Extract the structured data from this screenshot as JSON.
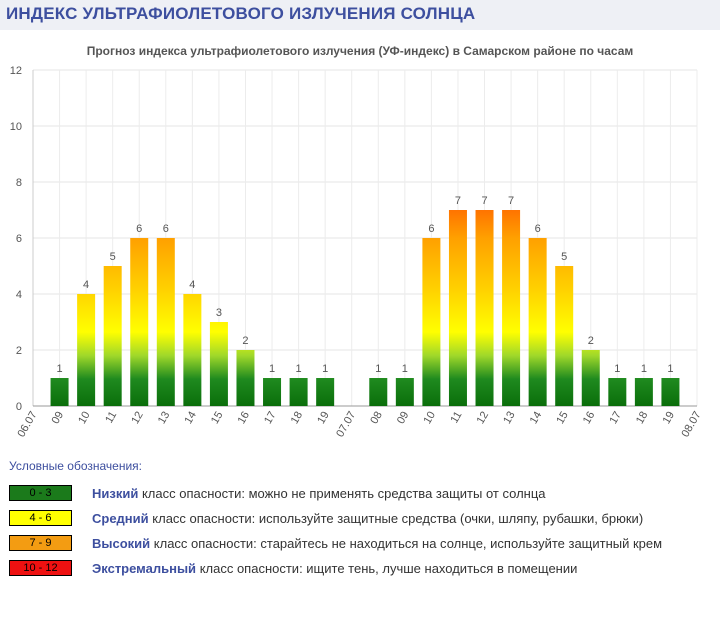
{
  "header": {
    "title": "ИНДЕКС УЛЬТРАФИОЛЕТОВОГО ИЗЛУЧЕНИЯ СОЛНЦА"
  },
  "chart_data": {
    "type": "bar",
    "title": "Прогноз индекса ультрафиолетового излучения (УФ-индекс) в Самарском районе по часам",
    "xlabel": "",
    "ylabel": "",
    "ylim": [
      0,
      12
    ],
    "yticks": [
      0,
      2,
      4,
      6,
      8,
      10,
      12
    ],
    "grid": true,
    "categories": [
      "06.07",
      "09",
      "10",
      "11",
      "12",
      "13",
      "14",
      "15",
      "16",
      "17",
      "18",
      "19",
      "07.07",
      "08",
      "09",
      "10",
      "11",
      "12",
      "13",
      "14",
      "15",
      "16",
      "17",
      "18",
      "19",
      "08.07"
    ],
    "values": [
      null,
      1,
      4,
      5,
      6,
      6,
      4,
      3,
      2,
      1,
      1,
      1,
      null,
      1,
      1,
      6,
      7,
      7,
      7,
      6,
      5,
      2,
      1,
      1,
      1,
      null
    ],
    "data_labels": true
  },
  "legend": {
    "title": "Условные обозначения:",
    "items": [
      {
        "range": "0 - 3",
        "color": "#1b7a1b",
        "text_color": "#000000",
        "level": "Низкий",
        "description": "класс опасности: можно не применять средства защиты от солнца"
      },
      {
        "range": "4 - 6",
        "color": "#ffff00",
        "text_color": "#000000",
        "level": "Средний",
        "description": "класс опасности: используйте защитные средства (очки, шляпу, рубашки, брюки)"
      },
      {
        "range": "7 - 9",
        "color": "#f39c12",
        "text_color": "#000000",
        "level": "Высокий",
        "description": "класс опасности: старайтесь не находиться на солнце, используйте защитный крем"
      },
      {
        "range": "10 - 12",
        "color": "#ee1111",
        "text_color": "#000000",
        "level": "Экстремальный",
        "description": "класс опасности: ищите тень, лучше находиться в помещении"
      }
    ]
  }
}
